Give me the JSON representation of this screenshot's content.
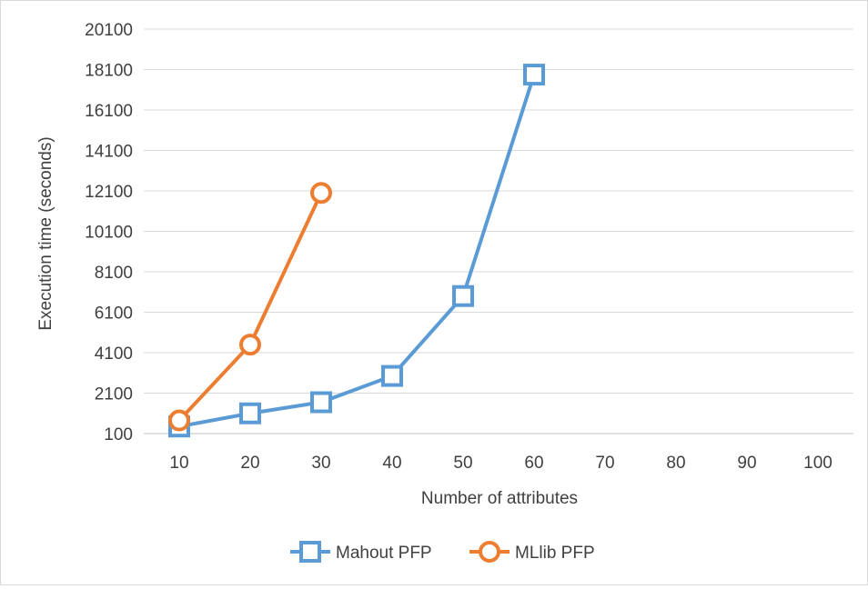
{
  "chart_data": {
    "type": "line",
    "title": "",
    "xlabel": "Number of attributes",
    "ylabel": "Execution time (seconds)",
    "x_ticks": [
      "10",
      "20",
      "30",
      "40",
      "50",
      "60",
      "70",
      "80",
      "90",
      "100"
    ],
    "y_ticks": [
      "100",
      "2100",
      "4100",
      "6100",
      "8100",
      "10100",
      "12100",
      "14100",
      "16100",
      "18100",
      "20100"
    ],
    "ylim": [
      100,
      20100
    ],
    "grid": true,
    "legend_position": "bottom",
    "series": [
      {
        "name": "Mahout PFP",
        "color": "#5b9bd5",
        "marker": "square",
        "x": [
          10,
          20,
          30,
          40,
          50,
          60
        ],
        "y": [
          450,
          1100,
          1650,
          2950,
          6900,
          17850
        ]
      },
      {
        "name": "MLlib PFP",
        "color": "#ed7d31",
        "marker": "circle",
        "x": [
          10,
          20,
          30
        ],
        "y": [
          750,
          4500,
          12000
        ]
      }
    ]
  }
}
